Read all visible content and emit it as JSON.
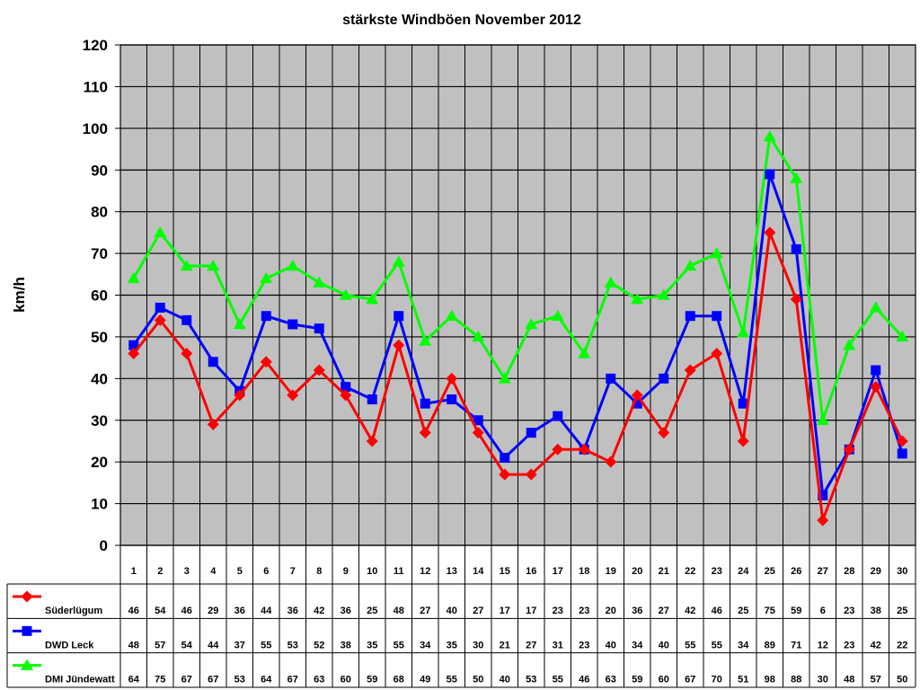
{
  "chart_data": {
    "type": "line",
    "title": "stärkste Windböen November 2012",
    "ylabel": "km/h",
    "xlabel": "",
    "ylim": [
      0,
      120
    ],
    "yticks": [
      0,
      10,
      20,
      30,
      40,
      50,
      60,
      70,
      80,
      90,
      100,
      110,
      120
    ],
    "grid": true,
    "legend_placement": "data-table-left",
    "categories": [
      "1",
      "2",
      "3",
      "4",
      "5",
      "6",
      "7",
      "8",
      "9",
      "10",
      "11",
      "12",
      "13",
      "14",
      "15",
      "16",
      "17",
      "18",
      "19",
      "20",
      "21",
      "22",
      "23",
      "24",
      "25",
      "26",
      "27",
      "28",
      "29",
      "30"
    ],
    "series": [
      {
        "name": "Süderlügum",
        "color": "#ff0000",
        "marker": "diamond",
        "values": [
          46,
          54,
          46,
          29,
          36,
          44,
          36,
          42,
          36,
          25,
          48,
          27,
          40,
          27,
          17,
          17,
          23,
          23,
          20,
          36,
          27,
          42,
          46,
          25,
          75,
          59,
          6,
          23,
          38,
          25
        ]
      },
      {
        "name": "DWD Leck",
        "color": "#0000ff",
        "marker": "square",
        "values": [
          48,
          57,
          54,
          44,
          37,
          55,
          53,
          52,
          38,
          35,
          55,
          34,
          35,
          30,
          21,
          27,
          31,
          23,
          40,
          34,
          40,
          55,
          55,
          34,
          89,
          71,
          12,
          23,
          42,
          22
        ]
      },
      {
        "name": "DMI Jündewatt",
        "color": "#00ff00",
        "marker": "triangle",
        "values": [
          64,
          75,
          67,
          67,
          53,
          64,
          67,
          63,
          60,
          59,
          68,
          49,
          55,
          50,
          40,
          53,
          55,
          46,
          63,
          59,
          60,
          67,
          70,
          51,
          98,
          88,
          30,
          48,
          57,
          50
        ]
      }
    ],
    "plot_background": "#c0c0c0"
  }
}
